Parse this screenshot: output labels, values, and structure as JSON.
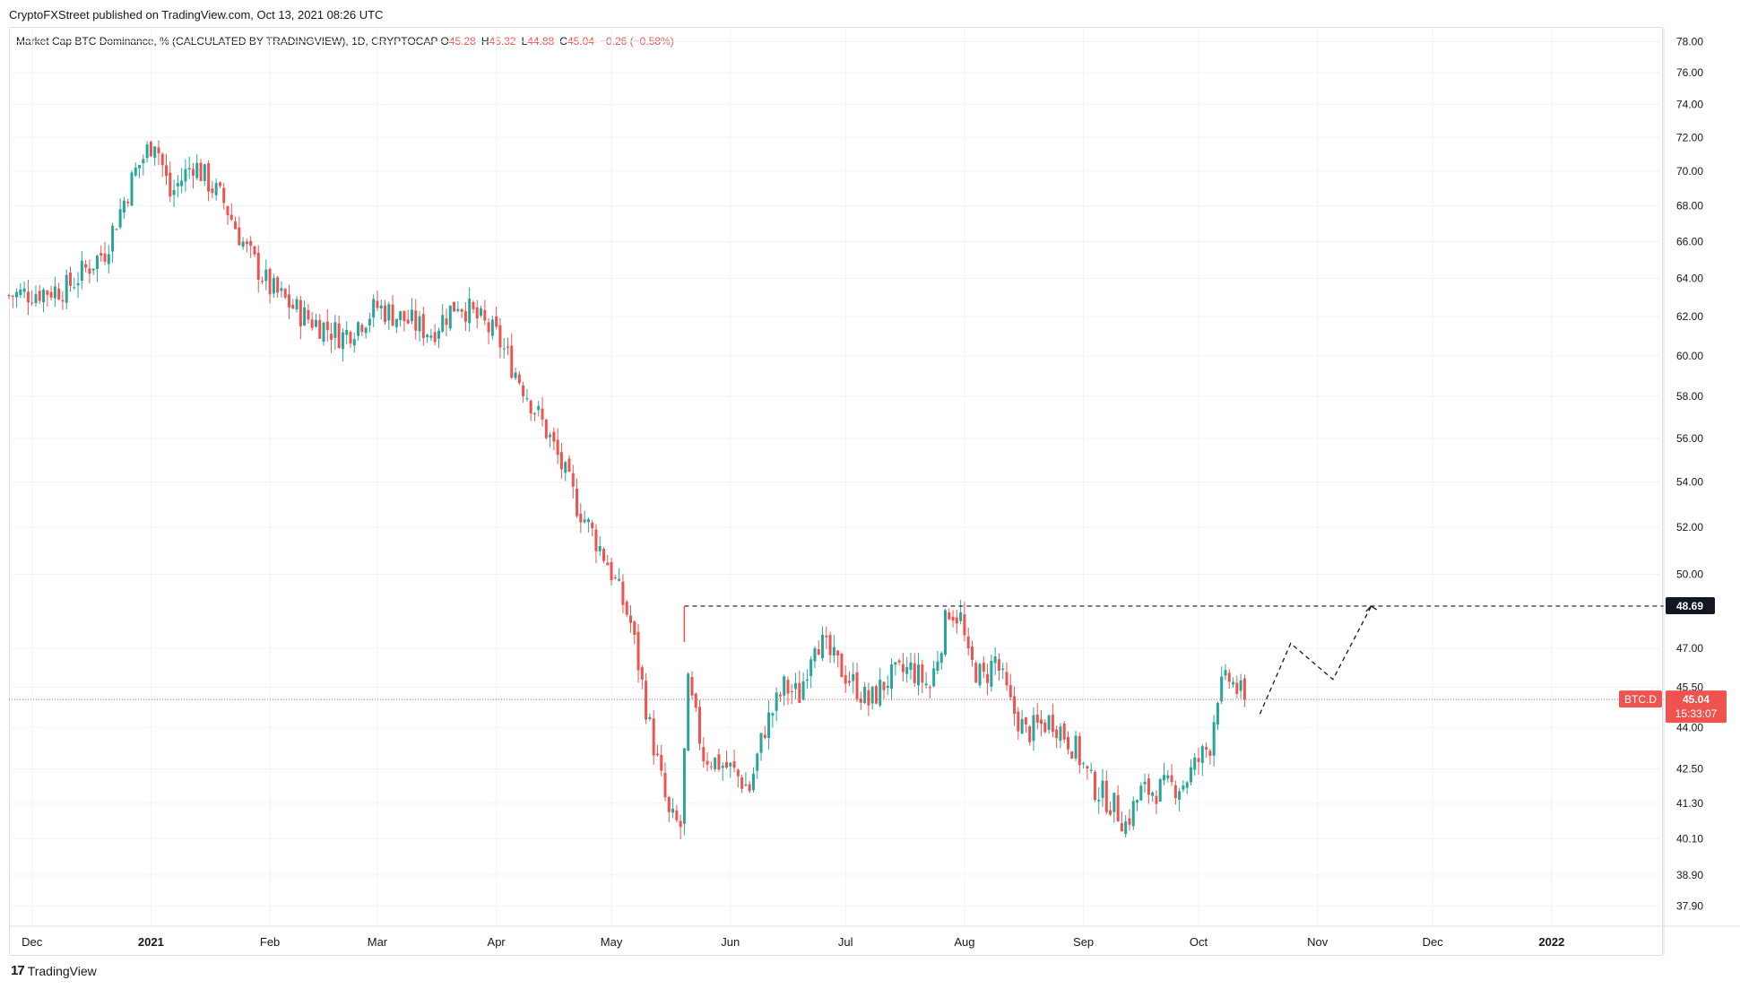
{
  "header": {
    "published": "CryptoFXStreet published on TradingView.com, Oct 13, 2021 08:26 UTC"
  },
  "legend": {
    "title": "Market Cap BTC Dominance, % (CALCULATED BY TRADINGVIEW), 1D, CRYPTOCAP",
    "o_label": "O",
    "o_value": "45.28",
    "h_label": "H",
    "h_value": "45.32",
    "l_label": "L",
    "l_value": "44.88",
    "c_label": "C",
    "c_value": "45.04",
    "change": "−0.26 (−0.58%)"
  },
  "footer": {
    "brand": "TradingView",
    "logo_text": "17"
  },
  "colors": {
    "up": "#26a69a",
    "down": "#ef5350",
    "grid": "#f0f3fa",
    "text": "#131722",
    "level_badge": "#131722",
    "price_badge": "#ef5350"
  },
  "chart_data": {
    "type": "candlestick",
    "symbol": "BTC.D",
    "scale": "log",
    "x_axis": {
      "ticks": [
        {
          "label": "Dec",
          "date": "2020-12-01"
        },
        {
          "label": "2021",
          "date": "2021-01-01",
          "bold": true
        },
        {
          "label": "Feb",
          "date": "2021-02-01"
        },
        {
          "label": "Mar",
          "date": "2021-03-01"
        },
        {
          "label": "Apr",
          "date": "2021-04-01"
        },
        {
          "label": "May",
          "date": "2021-05-01"
        },
        {
          "label": "Jun",
          "date": "2021-06-01"
        },
        {
          "label": "Jul",
          "date": "2021-07-01"
        },
        {
          "label": "Aug",
          "date": "2021-08-01"
        },
        {
          "label": "Sep",
          "date": "2021-09-01"
        },
        {
          "label": "Oct",
          "date": "2021-10-01"
        },
        {
          "label": "Nov",
          "date": "2021-11-01"
        },
        {
          "label": "Dec",
          "date": "2021-12-01"
        },
        {
          "label": "2022",
          "date": "2022-01-01",
          "bold": true
        }
      ],
      "range": [
        "2020-11-25",
        "2022-01-30"
      ]
    },
    "y_axis": {
      "ticks": [
        "78.00",
        "76.00",
        "74.00",
        "72.00",
        "70.00",
        "68.00",
        "66.00",
        "64.00",
        "62.00",
        "60.00",
        "58.00",
        "56.00",
        "54.00",
        "52.00",
        "50.00",
        "47.00",
        "45.50",
        "44.00",
        "42.50",
        "41.30",
        "40.10",
        "38.90",
        "37.90"
      ],
      "range": [
        37.3,
        78.9
      ]
    },
    "level_line": {
      "value": 48.69,
      "label": "48.69",
      "start_date": "2021-05-20",
      "style": "dashed"
    },
    "current_price": {
      "symbol": "BTC.D",
      "value": 45.04,
      "label": "45.04",
      "countdown": "15:33:07"
    },
    "projection_path": [
      {
        "date": "2021-10-17",
        "value": 44.5
      },
      {
        "date": "2021-10-25",
        "value": 47.2
      },
      {
        "date": "2021-11-05",
        "value": 45.8
      },
      {
        "date": "2021-11-15",
        "value": 48.69
      }
    ],
    "price_path": [
      {
        "date": "2020-11-25",
        "value": 63.1
      },
      {
        "date": "2020-12-10",
        "value": 63.5
      },
      {
        "date": "2020-12-20",
        "value": 65.5
      },
      {
        "date": "2020-12-28",
        "value": 70.0
      },
      {
        "date": "2021-01-02",
        "value": 72.0
      },
      {
        "date": "2021-01-06",
        "value": 68.6
      },
      {
        "date": "2021-01-12",
        "value": 70.5
      },
      {
        "date": "2021-01-20",
        "value": 68.2
      },
      {
        "date": "2021-01-26",
        "value": 65.5
      },
      {
        "date": "2021-02-01",
        "value": 63.5
      },
      {
        "date": "2021-02-10",
        "value": 62.0
      },
      {
        "date": "2021-02-20",
        "value": 61.0
      },
      {
        "date": "2021-03-01",
        "value": 62.5
      },
      {
        "date": "2021-03-15",
        "value": 61.2
      },
      {
        "date": "2021-03-22",
        "value": 62.8
      },
      {
        "date": "2021-04-01",
        "value": 61.0
      },
      {
        "date": "2021-04-08",
        "value": 58.5
      },
      {
        "date": "2021-04-15",
        "value": 56.0
      },
      {
        "date": "2021-04-22",
        "value": 53.0
      },
      {
        "date": "2021-04-30",
        "value": 50.5
      },
      {
        "date": "2021-05-06",
        "value": 48.0
      },
      {
        "date": "2021-05-11",
        "value": 44.0
      },
      {
        "date": "2021-05-16",
        "value": 40.8
      },
      {
        "date": "2021-05-19",
        "value": 40.5
      },
      {
        "date": "2021-05-21",
        "value": 45.5
      },
      {
        "date": "2021-05-25",
        "value": 43.0
      },
      {
        "date": "2021-06-01",
        "value": 42.5
      },
      {
        "date": "2021-06-06",
        "value": 41.8
      },
      {
        "date": "2021-06-10",
        "value": 44.0
      },
      {
        "date": "2021-06-15",
        "value": 45.5
      },
      {
        "date": "2021-06-19",
        "value": 45.2
      },
      {
        "date": "2021-06-23",
        "value": 47.5
      },
      {
        "date": "2021-06-28",
        "value": 46.5
      },
      {
        "date": "2021-07-04",
        "value": 45.5
      },
      {
        "date": "2021-07-07",
        "value": 44.9
      },
      {
        "date": "2021-07-12",
        "value": 45.8
      },
      {
        "date": "2021-07-18",
        "value": 46.2
      },
      {
        "date": "2021-07-23",
        "value": 45.5
      },
      {
        "date": "2021-07-28",
        "value": 48.6
      },
      {
        "date": "2021-07-31",
        "value": 48.2
      },
      {
        "date": "2021-08-02",
        "value": 46.5
      },
      {
        "date": "2021-08-06",
        "value": 45.8
      },
      {
        "date": "2021-08-09",
        "value": 46.6
      },
      {
        "date": "2021-08-13",
        "value": 44.8
      },
      {
        "date": "2021-08-17",
        "value": 43.8
      },
      {
        "date": "2021-08-24",
        "value": 44.3
      },
      {
        "date": "2021-08-30",
        "value": 43.2
      },
      {
        "date": "2021-09-03",
        "value": 42.0
      },
      {
        "date": "2021-09-09",
        "value": 41.2
      },
      {
        "date": "2021-09-12",
        "value": 40.6
      },
      {
        "date": "2021-09-16",
        "value": 41.7
      },
      {
        "date": "2021-09-22",
        "value": 41.8
      },
      {
        "date": "2021-09-27",
        "value": 42.0
      },
      {
        "date": "2021-09-30",
        "value": 42.6
      },
      {
        "date": "2021-10-04",
        "value": 43.4
      },
      {
        "date": "2021-10-06",
        "value": 45.3
      },
      {
        "date": "2021-10-09",
        "value": 45.8
      },
      {
        "date": "2021-10-13",
        "value": 45.04
      }
    ]
  }
}
